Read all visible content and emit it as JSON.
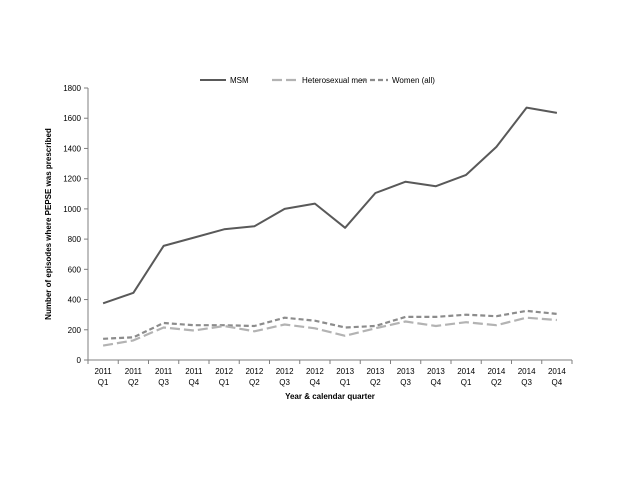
{
  "chart_data": {
    "type": "line",
    "title": "",
    "xlabel": "Year & calendar quarter",
    "ylabel": "Number of episodes where PEPSE was prescribed",
    "ylim": [
      0,
      1800
    ],
    "yticks": [
      0,
      200,
      400,
      600,
      800,
      1000,
      1200,
      1400,
      1600,
      1800
    ],
    "grid": false,
    "legend_position": "top-center",
    "categories": [
      {
        "year": "2011",
        "quarter": "Q1"
      },
      {
        "year": "2011",
        "quarter": "Q2"
      },
      {
        "year": "2011",
        "quarter": "Q3"
      },
      {
        "year": "2011",
        "quarter": "Q4"
      },
      {
        "year": "2012",
        "quarter": "Q1"
      },
      {
        "year": "2012",
        "quarter": "Q2"
      },
      {
        "year": "2012",
        "quarter": "Q3"
      },
      {
        "year": "2012",
        "quarter": "Q4"
      },
      {
        "year": "2013",
        "quarter": "Q1"
      },
      {
        "year": "2013",
        "quarter": "Q2"
      },
      {
        "year": "2013",
        "quarter": "Q3"
      },
      {
        "year": "2013",
        "quarter": "Q4"
      },
      {
        "year": "2014",
        "quarter": "Q1"
      },
      {
        "year": "2014",
        "quarter": "Q2"
      },
      {
        "year": "2014",
        "quarter": "Q3"
      },
      {
        "year": "2014",
        "quarter": "Q4"
      }
    ],
    "series": [
      {
        "name": "MSM",
        "color": "#595959",
        "style": "solid",
        "values": [
          375,
          445,
          755,
          810,
          865,
          885,
          1000,
          1035,
          875,
          1105,
          1180,
          1150,
          1225,
          1410,
          1670,
          1635
        ]
      },
      {
        "name": "Heterosexual men",
        "color": "#b3b3b3",
        "style": "long-dash",
        "values": [
          95,
          130,
          215,
          195,
          225,
          190,
          235,
          210,
          160,
          210,
          255,
          225,
          250,
          230,
          280,
          265
        ]
      },
      {
        "name": "Women (all)",
        "color": "#8c8c8c",
        "style": "short-dash",
        "values": [
          140,
          150,
          245,
          230,
          230,
          225,
          280,
          260,
          215,
          225,
          285,
          285,
          300,
          290,
          325,
          305
        ]
      }
    ]
  }
}
